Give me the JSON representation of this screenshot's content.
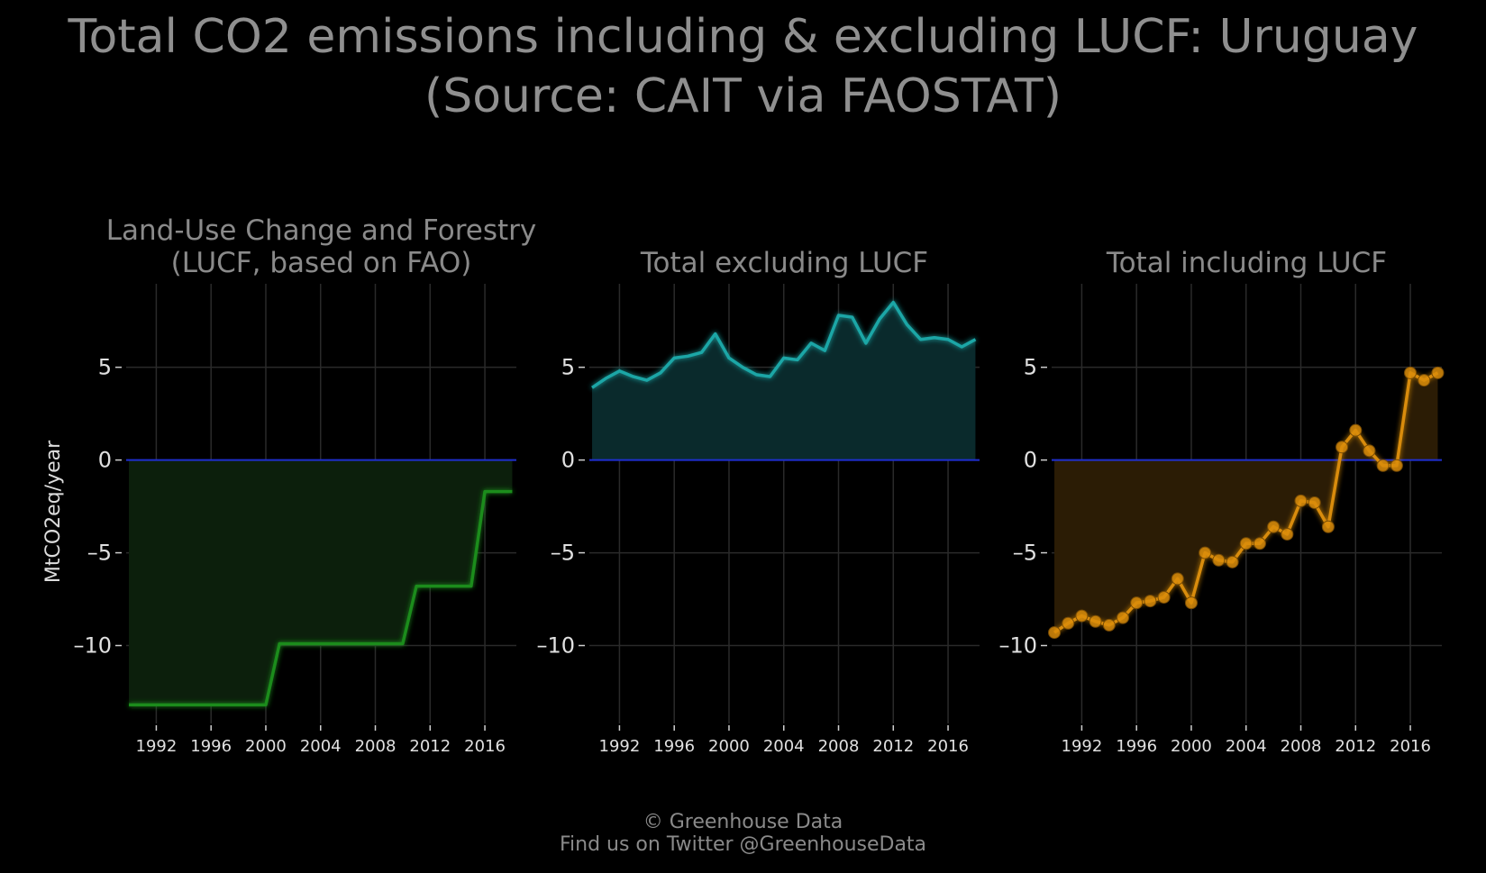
{
  "title_line1": "Total CO2 emissions including & excluding LUCF: Uruguay",
  "title_line2": "(Source: CAIT via FAOSTAT)",
  "ylabel": "MtCO2eq/year",
  "footer_line1": "© Greenhouse Data",
  "footer_line2": "Find us on Twitter @GreenhouseData",
  "chart_data": [
    {
      "type": "area",
      "title": [
        "Land-Use Change and Forestry",
        "(LUCF, based on FAO)"
      ],
      "color": "#1a8c1a",
      "fill": "#0c1f0c",
      "markers": false,
      "x": [
        1990,
        1991,
        1992,
        1993,
        1994,
        1995,
        1996,
        1997,
        1998,
        1999,
        2000,
        2001,
        2002,
        2003,
        2004,
        2005,
        2006,
        2007,
        2008,
        2009,
        2010,
        2011,
        2012,
        2013,
        2014,
        2015,
        2016,
        2017,
        2018
      ],
      "values": [
        -13.2,
        -13.2,
        -13.2,
        -13.2,
        -13.2,
        -13.2,
        -13.2,
        -13.2,
        -13.2,
        -13.2,
        -13.2,
        -9.9,
        -9.9,
        -9.9,
        -9.9,
        -9.9,
        -9.9,
        -9.9,
        -9.9,
        -9.9,
        -9.9,
        -6.8,
        -6.8,
        -6.8,
        -6.8,
        -6.8,
        -1.7,
        -1.7,
        -1.7
      ],
      "xlim": [
        1989.8,
        2018.3
      ],
      "ylim": [
        -14.2,
        9.5
      ],
      "xticks": [
        1992,
        1996,
        2000,
        2004,
        2008,
        2012,
        2016
      ],
      "yticks": [
        5,
        0,
        -5,
        -10
      ],
      "ytick_labels": [
        "5",
        "0",
        "–5",
        "–10"
      ]
    },
    {
      "type": "area",
      "title": [
        "Total excluding LUCF"
      ],
      "color": "#1aa6a6",
      "fill": "#0a2a2c",
      "markers": false,
      "x": [
        1990,
        1991,
        1992,
        1993,
        1994,
        1995,
        1996,
        1997,
        1998,
        1999,
        2000,
        2001,
        2002,
        2003,
        2004,
        2005,
        2006,
        2007,
        2008,
        2009,
        2010,
        2011,
        2012,
        2013,
        2014,
        2015,
        2016,
        2017,
        2018
      ],
      "values": [
        3.9,
        4.4,
        4.8,
        4.5,
        4.3,
        4.7,
        5.5,
        5.6,
        5.8,
        6.8,
        5.5,
        5.0,
        4.6,
        4.5,
        5.5,
        5.4,
        6.3,
        5.9,
        7.8,
        7.7,
        6.3,
        7.6,
        8.5,
        7.3,
        6.5,
        6.6,
        6.5,
        6.1,
        6.5
      ],
      "xlim": [
        1989.8,
        2018.3
      ],
      "ylim": [
        -14.2,
        9.5
      ],
      "xticks": [
        1992,
        1996,
        2000,
        2004,
        2008,
        2012,
        2016
      ],
      "yticks": [
        5,
        0,
        -5,
        -10
      ],
      "ytick_labels": [
        "5",
        "0",
        "–5",
        "–10"
      ]
    },
    {
      "type": "area",
      "title": [
        "Total including LUCF"
      ],
      "color": "#d98c0a",
      "fill": "#2b1c05",
      "markers": true,
      "x": [
        1990,
        1991,
        1992,
        1993,
        1994,
        1995,
        1996,
        1997,
        1998,
        1999,
        2000,
        2001,
        2002,
        2003,
        2004,
        2005,
        2006,
        2007,
        2008,
        2009,
        2010,
        2011,
        2012,
        2013,
        2014,
        2015,
        2016,
        2017,
        2018
      ],
      "values": [
        -9.3,
        -8.8,
        -8.4,
        -8.7,
        -8.9,
        -8.5,
        -7.7,
        -7.6,
        -7.4,
        -6.4,
        -7.7,
        -5.0,
        -5.4,
        -5.5,
        -4.5,
        -4.5,
        -3.6,
        -4.0,
        -2.2,
        -2.3,
        -3.6,
        0.7,
        1.6,
        0.5,
        -0.3,
        -0.3,
        4.7,
        4.3,
        4.7
      ],
      "xlim": [
        1989.8,
        2018.3
      ],
      "ylim": [
        -14.2,
        9.5
      ],
      "xticks": [
        1992,
        1996,
        2000,
        2004,
        2008,
        2012,
        2016
      ],
      "yticks": [
        5,
        0,
        -5,
        -10
      ],
      "ytick_labels": [
        "5",
        "0",
        "–5",
        "–10"
      ]
    }
  ]
}
